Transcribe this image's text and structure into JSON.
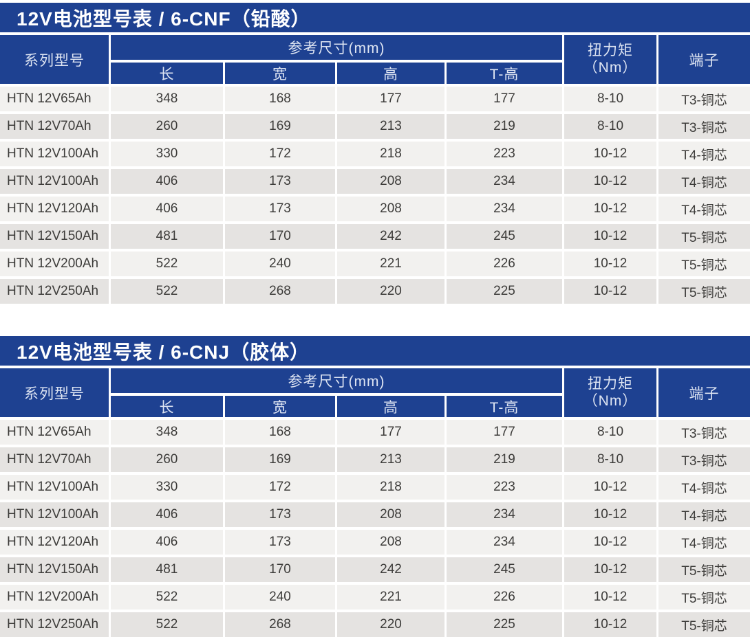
{
  "page": {
    "background": "#ffffff",
    "accent_blue": "#1e4191",
    "row_light": "#f2f1ef",
    "row_gray": "#e5e3e1",
    "header_text_color": "#dde4f2",
    "data_text_color": "#3d3c3a"
  },
  "tables": [
    {
      "title": "12V电池型号表 / 6-CNF（铅酸）",
      "header": {
        "series_label": "系列型号",
        "dims_label": "参考尺寸(mm)",
        "dim_sub_labels": [
          "长",
          "宽",
          "高",
          "T-高"
        ],
        "torque_label": "扭力矩",
        "torque_unit": "（Nm）",
        "terminal_label": "端子"
      },
      "rows": [
        {
          "model": "HTN 12V65Ah",
          "length": "348",
          "width": "168",
          "height": "177",
          "t_height": "177",
          "torque": "8-10",
          "terminal": "T3-铜芯"
        },
        {
          "model": "HTN 12V70Ah",
          "length": "260",
          "width": "169",
          "height": "213",
          "t_height": "219",
          "torque": "8-10",
          "terminal": "T3-铜芯"
        },
        {
          "model": "HTN 12V100Ah",
          "length": "330",
          "width": "172",
          "height": "218",
          "t_height": "223",
          "torque": "10-12",
          "terminal": "T4-铜芯"
        },
        {
          "model": "HTN 12V100Ah",
          "length": "406",
          "width": "173",
          "height": "208",
          "t_height": "234",
          "torque": "10-12",
          "terminal": "T4-铜芯"
        },
        {
          "model": "HTN 12V120Ah",
          "length": "406",
          "width": "173",
          "height": "208",
          "t_height": "234",
          "torque": "10-12",
          "terminal": "T4-铜芯"
        },
        {
          "model": "HTN 12V150Ah",
          "length": "481",
          "width": "170",
          "height": "242",
          "t_height": "245",
          "torque": "10-12",
          "terminal": "T5-铜芯"
        },
        {
          "model": "HTN 12V200Ah",
          "length": "522",
          "width": "240",
          "height": "221",
          "t_height": "226",
          "torque": "10-12",
          "terminal": "T5-铜芯"
        },
        {
          "model": "HTN 12V250Ah",
          "length": "522",
          "width": "268",
          "height": "220",
          "t_height": "225",
          "torque": "10-12",
          "terminal": "T5-铜芯"
        }
      ]
    },
    {
      "title": "12V电池型号表 / 6-CNJ（胶体）",
      "header": {
        "series_label": "系列型号",
        "dims_label": "参考尺寸(mm)",
        "dim_sub_labels": [
          "长",
          "宽",
          "高",
          "T-高"
        ],
        "torque_label": "扭力矩",
        "torque_unit": "（Nm）",
        "terminal_label": "端子"
      },
      "rows": [
        {
          "model": "HTN 12V65Ah",
          "length": "348",
          "width": "168",
          "height": "177",
          "t_height": "177",
          "torque": "8-10",
          "terminal": "T3-铜芯"
        },
        {
          "model": "HTN 12V70Ah",
          "length": "260",
          "width": "169",
          "height": "213",
          "t_height": "219",
          "torque": "8-10",
          "terminal": "T3-铜芯"
        },
        {
          "model": "HTN 12V100Ah",
          "length": "330",
          "width": "172",
          "height": "218",
          "t_height": "223",
          "torque": "10-12",
          "terminal": "T4-铜芯"
        },
        {
          "model": "HTN 12V100Ah",
          "length": "406",
          "width": "173",
          "height": "208",
          "t_height": "234",
          "torque": "10-12",
          "terminal": "T4-铜芯"
        },
        {
          "model": "HTN 12V120Ah",
          "length": "406",
          "width": "173",
          "height": "208",
          "t_height": "234",
          "torque": "10-12",
          "terminal": "T4-铜芯"
        },
        {
          "model": "HTN 12V150Ah",
          "length": "481",
          "width": "170",
          "height": "242",
          "t_height": "245",
          "torque": "10-12",
          "terminal": "T5-铜芯"
        },
        {
          "model": "HTN 12V200Ah",
          "length": "522",
          "width": "240",
          "height": "221",
          "t_height": "226",
          "torque": "10-12",
          "terminal": "T5-铜芯"
        },
        {
          "model": "HTN 12V250Ah",
          "length": "522",
          "width": "268",
          "height": "220",
          "t_height": "225",
          "torque": "10-12",
          "terminal": "T5-铜芯"
        }
      ]
    }
  ]
}
